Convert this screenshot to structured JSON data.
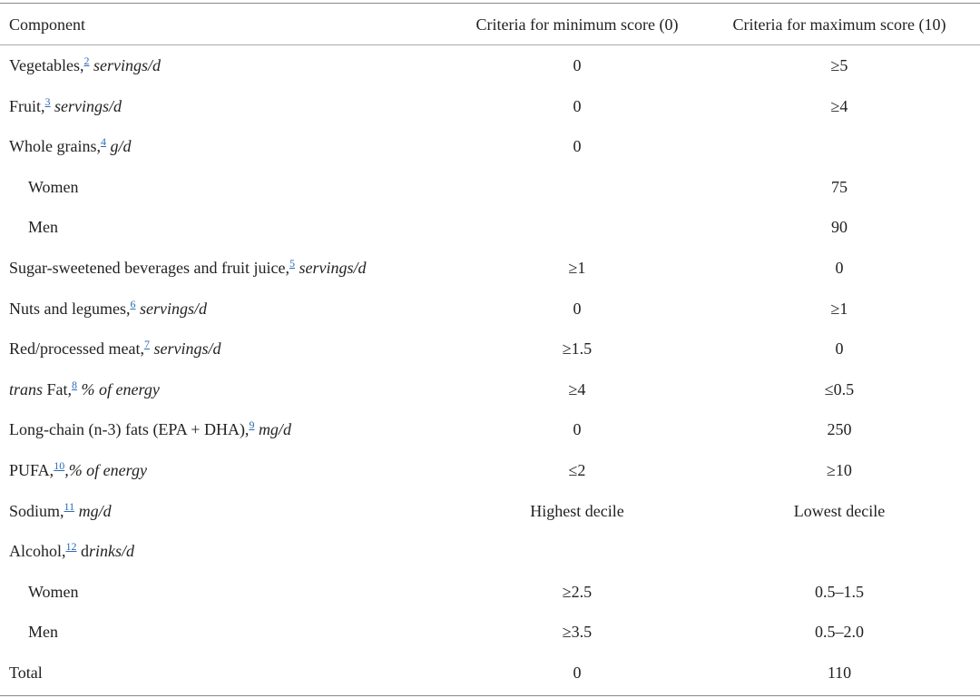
{
  "table": {
    "header": [
      "Component",
      "Criteria for minimum score (0)",
      "Criteria for maximum score (10)"
    ],
    "rows": [
      {
        "component": [
          {
            "text": "Vegetables,"
          },
          {
            "text": "2",
            "note": true
          },
          {
            "text": " servings/d",
            "italic": true
          }
        ],
        "min": "0",
        "max": "≥5"
      },
      {
        "component": [
          {
            "text": "Fruit,"
          },
          {
            "text": "3",
            "note": true
          },
          {
            "text": " servings/d",
            "italic": true
          }
        ],
        "min": "0",
        "max": "≥4"
      },
      {
        "component": [
          {
            "text": "Whole grains,"
          },
          {
            "text": "4",
            "note": true
          },
          {
            "text": " g/d",
            "italic": true
          }
        ],
        "min": "0"
      },
      {
        "component": [
          {
            "text": "Women"
          }
        ],
        "indent": true,
        "max": "75"
      },
      {
        "component": [
          {
            "text": "Men"
          }
        ],
        "indent": true,
        "max": "90"
      },
      {
        "component": [
          {
            "text": "Sugar-sweetened beverages and fruit juice,"
          },
          {
            "text": "5",
            "note": true
          },
          {
            "text": " servings/d",
            "italic": true
          }
        ],
        "min": "≥1",
        "max": "0"
      },
      {
        "component": [
          {
            "text": "Nuts and legumes,"
          },
          {
            "text": "6",
            "note": true
          },
          {
            "text": " servings/d",
            "italic": true
          }
        ],
        "min": "0",
        "max": "≥1"
      },
      {
        "component": [
          {
            "text": "Red/processed meat,"
          },
          {
            "text": "7",
            "note": true
          },
          {
            "text": " servings/d",
            "italic": true
          }
        ],
        "min": "≥1.5",
        "max": "0"
      },
      {
        "component": [
          {
            "text": "trans",
            "italic": true
          },
          {
            "text": " Fat,"
          },
          {
            "text": "8",
            "note": true
          },
          {
            "text": " % of energy",
            "italic": true
          }
        ],
        "min": "≥4",
        "max": "≤0.5"
      },
      {
        "component": [
          {
            "text": "Long-chain (n-3) fats (EPA + DHA),"
          },
          {
            "text": "9",
            "note": true
          },
          {
            "text": " mg/d",
            "italic": true
          }
        ],
        "min": "0",
        "max": "250"
      },
      {
        "component": [
          {
            "text": "PUFA,"
          },
          {
            "text": "10",
            "note": true
          },
          {
            "text": ",% of energy",
            "italic": true
          }
        ],
        "min": "≤2",
        "max": "≥10"
      },
      {
        "component": [
          {
            "text": "Sodium,"
          },
          {
            "text": "11",
            "note": true
          },
          {
            "text": " mg/d",
            "italic": true
          }
        ],
        "min": "Highest decile",
        "max": "Lowest decile"
      },
      {
        "component": [
          {
            "text": "Alcohol,"
          },
          {
            "text": "12",
            "note": true
          },
          {
            "text": " d"
          },
          {
            "text": "rinks/d",
            "italic": true
          }
        ]
      },
      {
        "component": [
          {
            "text": "Women"
          }
        ],
        "indent": true,
        "min": "≥2.5",
        "max": "0.5–1.5"
      },
      {
        "component": [
          {
            "text": "Men"
          }
        ],
        "indent": true,
        "min": "≥3.5",
        "max": "0.5–2.0"
      },
      {
        "component": [
          {
            "text": "Total"
          }
        ],
        "min": "0",
        "max": "110"
      }
    ]
  }
}
